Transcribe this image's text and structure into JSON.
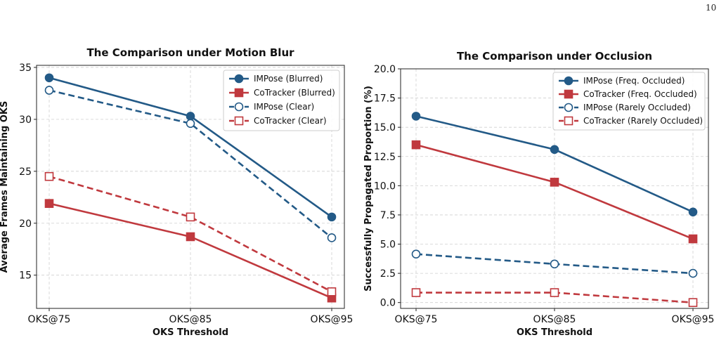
{
  "page_number": "10",
  "chart_data": [
    {
      "type": "line",
      "title": "The Comparison under Motion Blur",
      "xlabel": "OKS Threshold",
      "ylabel": "Average Frames Maintaining OKS",
      "categories": [
        "OKS@75",
        "OKS@85",
        "OKS@95"
      ],
      "ylim": [
        11.8,
        35.2
      ],
      "yticks": [
        15,
        20,
        25,
        30,
        35
      ],
      "grid": true,
      "legend_position": "top-right",
      "series": [
        {
          "name": "IMPose (Blurred)",
          "values": [
            34.0,
            30.3,
            20.6
          ],
          "color": "#235a87",
          "marker": "circle",
          "filled": true,
          "dashed": false
        },
        {
          "name": "CoTracker (Blurred)",
          "values": [
            21.9,
            18.7,
            12.8
          ],
          "color": "#c0393e",
          "marker": "square",
          "filled": true,
          "dashed": false
        },
        {
          "name": "IMPose (Clear)",
          "values": [
            32.8,
            29.6,
            18.6
          ],
          "color": "#235a87",
          "marker": "circle",
          "filled": false,
          "dashed": true
        },
        {
          "name": "CoTracker (Clear)",
          "values": [
            24.5,
            20.6,
            13.4
          ],
          "color": "#c0393e",
          "marker": "square",
          "filled": false,
          "dashed": true
        }
      ]
    },
    {
      "type": "line",
      "title": "The Comparison under Occlusion",
      "xlabel": "OKS Threshold",
      "ylabel": "Successfully Propagated Proportion (%)",
      "categories": [
        "OKS@75",
        "OKS@85",
        "OKS@95"
      ],
      "ylim": [
        -0.5,
        20.0
      ],
      "yticks": [
        0.0,
        2.5,
        5.0,
        7.5,
        10.0,
        12.5,
        15.0,
        17.5,
        20.0
      ],
      "grid": true,
      "legend_position": "top-right",
      "series": [
        {
          "name": "IMPose (Freq. Occluded)",
          "values": [
            15.95,
            13.1,
            7.75
          ],
          "color": "#235a87",
          "marker": "circle",
          "filled": true,
          "dashed": false
        },
        {
          "name": "CoTracker (Freq. Occluded)",
          "values": [
            13.5,
            10.3,
            5.45
          ],
          "color": "#c0393e",
          "marker": "square",
          "filled": true,
          "dashed": false
        },
        {
          "name": "IMPose (Rarely Occluded)",
          "values": [
            4.15,
            3.3,
            2.5
          ],
          "color": "#235a87",
          "marker": "circle",
          "filled": false,
          "dashed": true
        },
        {
          "name": "CoTracker (Rarely Occluded)",
          "values": [
            0.85,
            0.85,
            0.0
          ],
          "color": "#c0393e",
          "marker": "square",
          "filled": false,
          "dashed": true
        }
      ]
    }
  ]
}
